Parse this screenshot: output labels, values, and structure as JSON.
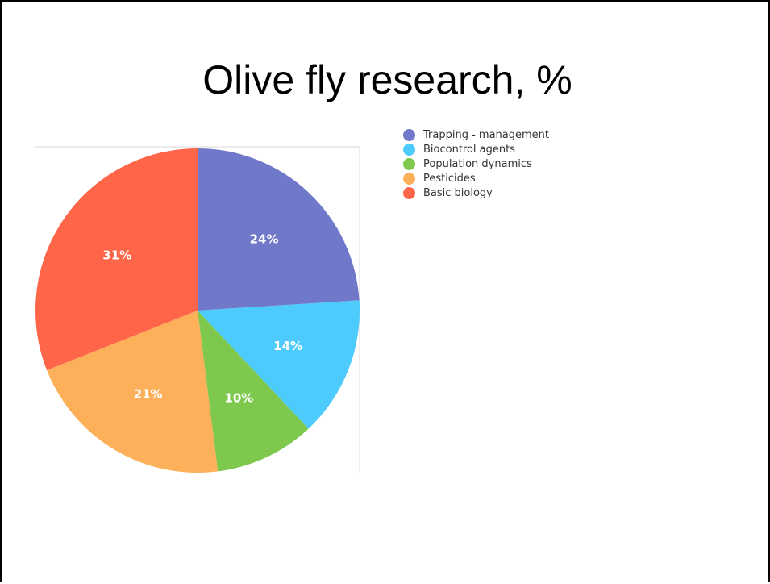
{
  "slide": {
    "title": "Olive fly research, %"
  },
  "chart_data": {
    "type": "pie",
    "title": "Olive fly research, %",
    "categories": [
      "Trapping - management",
      "Biocontrol agents",
      "Population dynamics",
      "Pesticides",
      "Basic biology"
    ],
    "values": [
      24,
      14,
      10,
      21,
      31
    ],
    "labels": [
      "24%",
      "14%",
      "10%",
      "21%",
      "31%"
    ],
    "colors": [
      "#7079c9",
      "#4dcbfc",
      "#7ec84e",
      "#fdb05a",
      "#fe6549"
    ],
    "legend_position": "right"
  }
}
